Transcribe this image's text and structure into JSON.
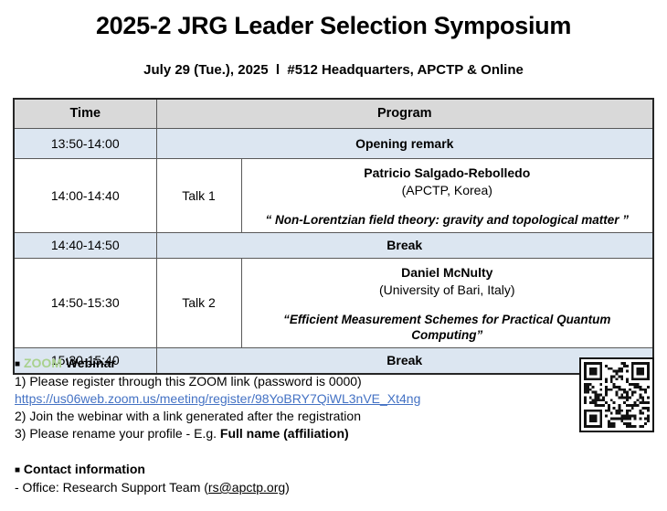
{
  "header": {
    "title": "2025-2 JRG Leader Selection Symposium",
    "subtitle": "July 29 (Tue.), 2025  l  #512 Headquarters, APCTP & Online"
  },
  "table": {
    "col_time": "Time",
    "col_program": "Program",
    "rows": [
      {
        "time": "13:50-14:00",
        "program": "Opening remark"
      },
      {
        "time": "14:00-14:40",
        "label": "Talk 1",
        "speaker": "Patricio Salgado-Rebolledo",
        "affiliation": "(APCTP, Korea)",
        "talk_title": "“ Non-Lorentzian field theory: gravity and topological matter ”"
      },
      {
        "time": "14:40-14:50",
        "program": "Break"
      },
      {
        "time": "14:50-15:30",
        "label": "Talk 2",
        "speaker": "Daniel McNulty",
        "affiliation": "(University of Bari, Italy)",
        "talk_title": "“Efficient Measurement Schemes for Practical Quantum Computing”"
      },
      {
        "time": "15:30-15:40",
        "program": "Break"
      }
    ]
  },
  "zoom_section": {
    "bullet": "■",
    "brand": "ZOOM",
    "heading": " Webinar",
    "line1": "1) Please register through this ZOOM link (password is 0000)",
    "link": "https://us06web.zoom.us/meeting/register/98YoBRY7QiWL3nVE_Xt4ng",
    "line2": "2) Join the webinar with a link generated after the registration",
    "line3_prefix": "3) Please rename your profile - E.g. ",
    "line3_bold": "Full name (affiliation)"
  },
  "contact_section": {
    "bullet": "■",
    "heading": " Contact information",
    "line_prefix": "- Office: Research Support Team (",
    "email": "rs@apctp.org",
    "line_suffix": ")"
  },
  "colors": {
    "header_bg": "#d9d9d9",
    "highlight_bg": "#dce6f1",
    "link_blue": "#4472c4",
    "zoom_green": "#a9d18e"
  }
}
